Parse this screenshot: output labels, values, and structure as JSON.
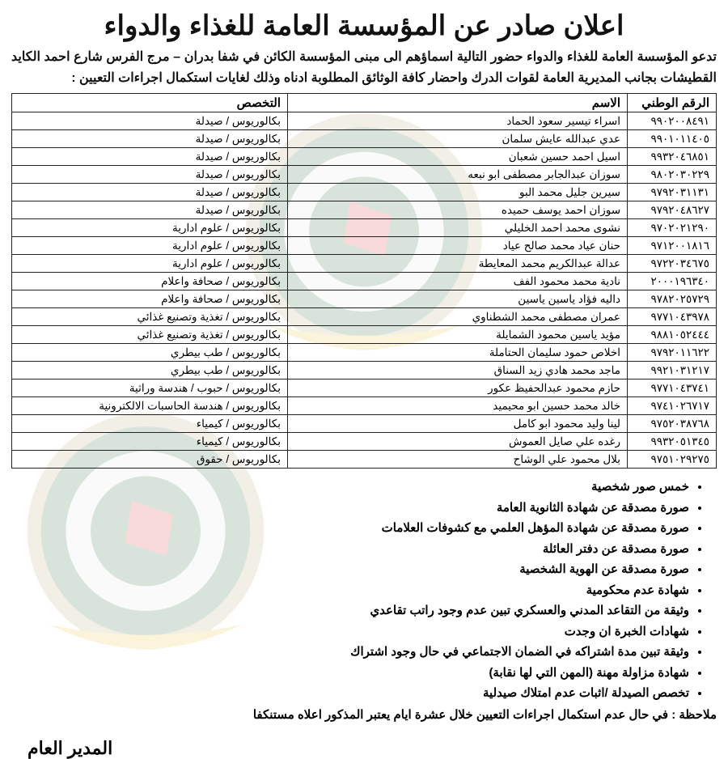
{
  "title": "اعلان صادر عن المؤسسة العامة للغذاء والدواء",
  "intro": "تدعو المؤسسة العامة للغذاء والدواء حضور التالية اسماؤهم الى مبنى المؤسسة الكائن في شفا بدران – مرج الفرس شارع احمد الكايد القطيشات بجانب المديرية العامة لقوات الدرك واحضار كافة الوثائق المطلوبة ادناه وذلك لغايات استكمال اجراءات التعيين :",
  "headers": {
    "id": "الرقم الوطني",
    "name": "الاسم",
    "spec": "التخصص"
  },
  "rows": [
    {
      "id": "٩٩٠٢٠٠٨٤٩١",
      "name": "اسراء تيسير سعود الحماد",
      "spec": "بكالوريوس / صيدلة"
    },
    {
      "id": "٩٩٠١٠١١٤٠٥",
      "name": "عدي عبدالله عايش سلمان",
      "spec": "بكالوريوس / صيدلة"
    },
    {
      "id": "٩٩٣٢٠٤٦٨٥١",
      "name": "اسيل احمد حسين شعبان",
      "spec": "بكالوريوس / صيدلة"
    },
    {
      "id": "٩٨٠٢٠٣٠٢٢٩",
      "name": "سوزان عبدالجابر مصطفى ابو نبعه",
      "spec": "بكالوريوس / صيدلة"
    },
    {
      "id": "٩٧٩٢٠٣١١٣١",
      "name": "سيرين جليل محمد البو",
      "spec": "بكالوريوس / صيدلة"
    },
    {
      "id": "٩٧٩٢٠٤٨٦٢٧",
      "name": "سوزان احمد يوسف حميده",
      "spec": "بكالوريوس / صيدلة"
    },
    {
      "id": "٩٧٠٢٠٢١٢٩٠",
      "name": "نشوى محمد احمد الخليلي",
      "spec": "بكالوريوس / علوم ادارية"
    },
    {
      "id": "٩٧١٢٠٠١٨١٦",
      "name": "حنان عياد محمد صالح عياد",
      "spec": "بكالوريوس / علوم ادارية"
    },
    {
      "id": "٩٧٢٢٠٣٤٦٧٥",
      "name": "عدالة عبدالكريم محمد المعايطة",
      "spec": "بكالوريوس / علوم ادارية"
    },
    {
      "id": "٢٠٠٠١٩٦٣٤٠",
      "name": "نادية محمد محمود الفف",
      "spec": "بكالوريوس / صحافة واعلام"
    },
    {
      "id": "٩٧٨٢٠٢٥٧٢٩",
      "name": "داليه فؤاد ياسين ياسين",
      "spec": "بكالوريوس / صحافة واعلام"
    },
    {
      "id": "٩٧٧١٠٤٣٩٧٨",
      "name": "عمران مصطفى محمد الشطناوي",
      "spec": "بكالوريوس / تغذية وتصنيع غذائي"
    },
    {
      "id": "٩٨٨١٠٥٢٤٤٤",
      "name": "مؤيد ياسين محمود الشمايلة",
      "spec": "بكالوريوس / تغذية وتصنيع غذائي"
    },
    {
      "id": "٩٧٩٢٠١١٦٢٢",
      "name": "اخلاص حمود سليمان الحتاملة",
      "spec": "بكالوريوس / طب بيطري"
    },
    {
      "id": "٩٩٢١٠٣١٢١٧",
      "name": "ماجد محمد هادي زيد السناق",
      "spec": "بكالوريوس / طب بيطري"
    },
    {
      "id": "٩٧٧١٠٤٣٧٤١",
      "name": "حازم محمود عبدالحفيظ عكور",
      "spec": "بكالوريوس / حبوب / هندسة وراثية"
    },
    {
      "id": "٩٧٤١٠٢٦٧١٧",
      "name": "خالد محمد حسين ابو محيميد",
      "spec": "بكالوريوس / هندسة الحاسبات الالكترونية"
    },
    {
      "id": "٩٧٥٢٠٣٨٧٦٨",
      "name": "لينا وليد محمود ابو كامل",
      "spec": "بكالوريوس / كيمياء"
    },
    {
      "id": "٩٩٣٢٠٥١٣٤٥",
      "name": "رغده علي صايل العموش",
      "spec": "بكالوريوس / كيمياء"
    },
    {
      "id": "٩٧٥١٠٢٩٢٧٥",
      "name": "بلال محمود علي الوشاح",
      "spec": "بكالوريوس / حقوق"
    }
  ],
  "docs": [
    "خمس صور شخصية",
    "صورة مصدقة عن شهادة الثانوية العامة",
    "صورة مصدقة عن شهادة المؤهل العلمي مع كشوفات العلامات",
    "صورة مصدقة عن دفتر العائلة",
    "صورة مصدقة عن الهوية الشخصية",
    "شهادة عدم محكومية",
    "وثيقة من التقاعد المدني والعسكري تبين عدم وجود راتب تقاعدي",
    "شهادات الخبرة ان وجدت",
    "وثيقة تبين مدة اشتراكه في الضمان الاجتماعي في حال وجود اشتراك",
    "شهادة مزاولة مهنة (المهن التي لها نقابة)",
    "تخصص الصيدلة /اثبات عدم امتلاك صيدلية"
  ],
  "note": "ملاحظة : في حال عدم استكمال اجراءات التعيين خلال عشرة ايام يعتبر المذكور اعلاه مستنكفا",
  "signature": "المدير العام"
}
